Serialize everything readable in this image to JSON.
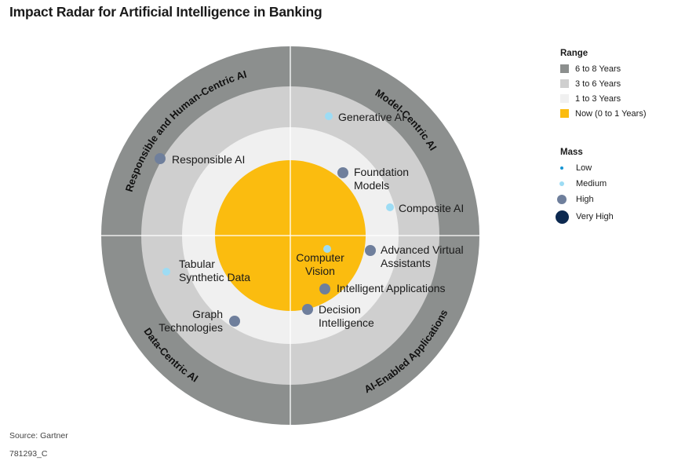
{
  "title": "Impact Radar for Artificial Intelligence in Banking",
  "colors": {
    "ring_6_8": "#8c8f8e",
    "ring_3_6": "#cfcfcf",
    "ring_1_3": "#f0f0f0",
    "ring_now": "#fbbc0f",
    "mass_low": "#1595d3",
    "mass_medium": "#9ddcf4",
    "mass_high": "#6f7f9c",
    "mass_very_high": "#0c2950",
    "divider": "#ffffff"
  },
  "sectors": [
    {
      "label": "Responsible and Human-Centric AI",
      "position": "top-left"
    },
    {
      "label": "Model-Centric AI",
      "position": "top-right"
    },
    {
      "label": "AI-Enabled Applications",
      "position": "bottom-right"
    },
    {
      "label": "Data-Centric AI",
      "position": "bottom-left"
    }
  ],
  "technologies": [
    {
      "name": [
        "Generative AI"
      ],
      "mass": "medium"
    },
    {
      "name": [
        "Foundation",
        "Models"
      ],
      "mass": "high"
    },
    {
      "name": [
        "Composite AI"
      ],
      "mass": "medium"
    },
    {
      "name": [
        "Responsible AI"
      ],
      "mass": "high"
    },
    {
      "name": [
        "Advanced Virtual",
        "Assistants"
      ],
      "mass": "high"
    },
    {
      "name": [
        "Computer",
        "Vision"
      ],
      "mass": "medium"
    },
    {
      "name": [
        "Intelligent Applications"
      ],
      "mass": "high"
    },
    {
      "name": [
        "Decision",
        "Intelligence"
      ],
      "mass": "high"
    },
    {
      "name": [
        "Tabular",
        "Synthetic Data"
      ],
      "mass": "medium"
    },
    {
      "name": [
        "Graph",
        "Technologies"
      ],
      "mass": "high"
    }
  ],
  "legend": {
    "range_title": "Range",
    "range_items": [
      {
        "label": "6 to 8 Years",
        "color": "#8c8f8e"
      },
      {
        "label": "3 to 6 Years",
        "color": "#cfcfcf"
      },
      {
        "label": "1 to 3 Years",
        "color": "#f0f0f0"
      },
      {
        "label": "Now (0 to 1 Years)",
        "color": "#fbbc0f"
      }
    ],
    "mass_title": "Mass",
    "mass_items": [
      {
        "label": "Low",
        "color": "#1595d3"
      },
      {
        "label": "Medium",
        "color": "#9ddcf4"
      },
      {
        "label": "High",
        "color": "#6f7f9c"
      },
      {
        "label": "Very High",
        "color": "#0c2950"
      }
    ]
  },
  "footer": {
    "source": "Source: Gartner",
    "id": "781293_C"
  }
}
